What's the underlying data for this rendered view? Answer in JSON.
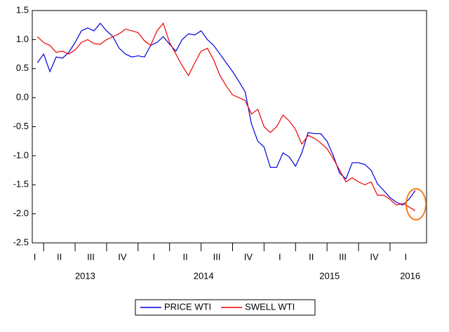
{
  "chart_data": {
    "type": "line",
    "x": [
      2013.2,
      2013.25,
      2013.3,
      2013.35,
      2013.4,
      2013.45,
      2013.5,
      2013.55,
      2013.6,
      2013.65,
      2013.7,
      2013.75,
      2013.8,
      2013.85,
      2013.9,
      2013.95,
      2014.0,
      2014.05,
      2014.1,
      2014.15,
      2014.2,
      2014.25,
      2014.3,
      2014.35,
      2014.4,
      2014.45,
      2014.5,
      2014.55,
      2014.6,
      2014.65,
      2014.7,
      2014.75,
      2014.8,
      2014.85,
      2014.9,
      2014.95,
      2015.0,
      2015.05,
      2015.1,
      2015.15,
      2015.2,
      2015.25,
      2015.3,
      2015.35,
      2015.4,
      2015.45,
      2015.5,
      2015.55,
      2015.6,
      2015.65,
      2015.7,
      2015.75,
      2015.8,
      2015.85,
      2015.9,
      2015.95,
      2016.0,
      2016.05,
      2016.1,
      2016.15,
      2016.2
    ],
    "series": [
      {
        "name": "PRICE WTI",
        "color": "#0000dd",
        "values": [
          0.6,
          0.75,
          0.45,
          0.7,
          0.68,
          0.78,
          0.95,
          1.15,
          1.2,
          1.15,
          1.28,
          1.15,
          1.05,
          0.85,
          0.75,
          0.7,
          0.72,
          0.7,
          0.9,
          0.95,
          1.05,
          0.92,
          0.8,
          1.0,
          1.1,
          1.08,
          1.15,
          1.0,
          0.9,
          0.75,
          0.6,
          0.45,
          0.28,
          0.1,
          -0.45,
          -0.75,
          -0.85,
          -1.2,
          -1.2,
          -0.95,
          -1.02,
          -1.18,
          -0.95,
          -0.6,
          -0.62,
          -0.62,
          -0.75,
          -1.0,
          -1.3,
          -1.4,
          -1.12,
          -1.12,
          -1.15,
          -1.25,
          -1.48,
          -1.6,
          -1.72,
          -1.8,
          -1.85,
          -1.75,
          -1.6
        ]
      },
      {
        "name": "SWELL WTI",
        "color": "#ee0000",
        "values": [
          1.05,
          0.95,
          0.9,
          0.78,
          0.8,
          0.75,
          0.82,
          0.95,
          1.0,
          0.93,
          0.92,
          1.0,
          1.05,
          1.1,
          1.18,
          1.15,
          1.12,
          0.98,
          0.9,
          1.15,
          1.28,
          0.95,
          0.75,
          0.55,
          0.38,
          0.6,
          0.8,
          0.85,
          0.65,
          0.38,
          0.2,
          0.05,
          0.0,
          -0.05,
          -0.28,
          -0.2,
          -0.5,
          -0.6,
          -0.5,
          -0.3,
          -0.4,
          -0.55,
          -0.8,
          -0.65,
          -0.7,
          -0.78,
          -0.88,
          -1.05,
          -1.25,
          -1.45,
          -1.38,
          -1.45,
          -1.5,
          -1.45,
          -1.68,
          -1.68,
          -1.75,
          -1.85,
          -1.82,
          -1.88,
          -1.95
        ]
      }
    ],
    "xlim": [
      2013.16,
      2016.29
    ],
    "xticks": [
      2013.25,
      2013.5,
      2013.75,
      2014.0,
      2014.25,
      2014.5,
      2014.75,
      2015.0,
      2015.25,
      2015.5,
      2015.75,
      2016.0
    ],
    "quarter_labels": [
      {
        "value": 2013.18,
        "label": "I"
      },
      {
        "value": 2013.375,
        "label": "II"
      },
      {
        "value": 2013.625,
        "label": "III"
      },
      {
        "value": 2013.875,
        "label": "IV"
      },
      {
        "value": 2014.125,
        "label": "I"
      },
      {
        "value": 2014.375,
        "label": "II"
      },
      {
        "value": 2014.625,
        "label": "III"
      },
      {
        "value": 2014.875,
        "label": "IV"
      },
      {
        "value": 2015.125,
        "label": "I"
      },
      {
        "value": 2015.375,
        "label": "II"
      },
      {
        "value": 2015.625,
        "label": "III"
      },
      {
        "value": 2015.875,
        "label": "IV"
      },
      {
        "value": 2016.125,
        "label": "I"
      }
    ],
    "year_labels": [
      {
        "value": 2013.58,
        "label": "2013"
      },
      {
        "value": 2014.52,
        "label": "2014"
      },
      {
        "value": 2015.52,
        "label": "2015"
      },
      {
        "value": 2016.16,
        "label": "2016"
      }
    ],
    "ylim": [
      -2.5,
      1.5
    ],
    "yticks": [
      1.5,
      {
        "value": 1.0,
        "label": "1.0"
      },
      0.5,
      {
        "value": 0.0,
        "label": "0.0"
      },
      -0.5,
      {
        "value": -1.0,
        "label": "-1.0"
      },
      -1.5,
      {
        "value": -2.0,
        "label": "-2.0"
      },
      -2.5
    ],
    "grid": false
  }
}
